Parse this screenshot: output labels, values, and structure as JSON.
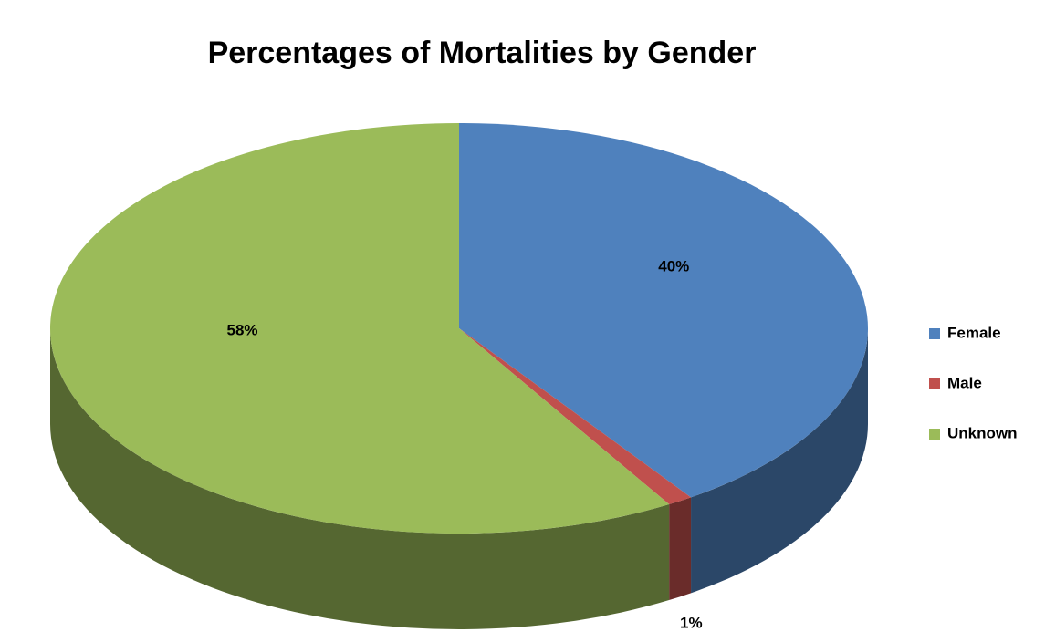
{
  "chart_data": {
    "type": "pie",
    "title": "Percentages of Mortalities by Gender",
    "categories": [
      "Female",
      "Male",
      "Unknown"
    ],
    "values": [
      40,
      1,
      58
    ],
    "value_labels": [
      "40%",
      "1%",
      "58%"
    ],
    "colors": [
      "#4f81bd",
      "#c0504d",
      "#9bbb59"
    ],
    "legend": "right"
  }
}
